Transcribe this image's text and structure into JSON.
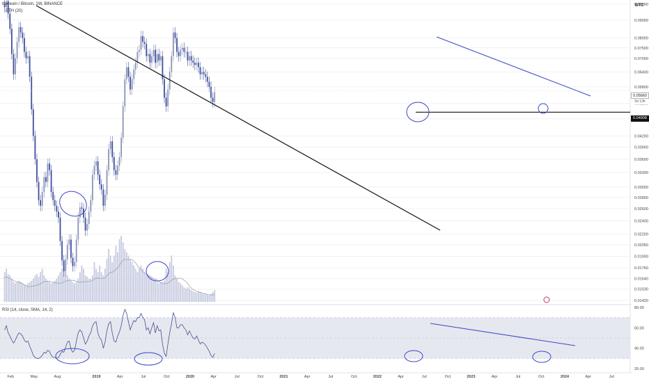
{
  "header": {
    "symbol": "thereum / Bitcoin, 1W, BINANCE",
    "ma_label": "ETH (20)",
    "currency": "BTC"
  },
  "rsi_header": "RSI (14, close, SMA, 14, 2)",
  "price_tags": {
    "current": "0.05660",
    "countdown": "5d 13h",
    "level": "0.04908"
  },
  "colors": {
    "up": "#8b93b8",
    "down": "#3f4f9e",
    "trend_blue": "#3a45c8",
    "trend_black": "#111111",
    "rsi_line": "#454f8a",
    "rsi_band": "#e6e8f0",
    "volume": "#c5cae0",
    "ma": "#9a9a9a"
  },
  "chart_data": [
    {
      "type": "line",
      "title": "",
      "xlabel": "",
      "ylabel": "",
      "x_ticks": [
        "Feb",
        "May",
        "Aug",
        "2019",
        "Apr",
        "Jul",
        "Oct",
        "2020",
        "Apr",
        "Jul",
        "Oct",
        "2021",
        "Apr",
        "Jul",
        "Oct",
        "2022",
        "Apr",
        "Jul",
        "Oct",
        "2023",
        "Apr",
        "Jul",
        "Oct",
        "2024",
        "Apr",
        "Jul"
      ],
      "y_ticks": [
        "0.10000",
        "0.09000",
        "0.08000",
        "0.07500",
        "0.07000",
        "0.06400",
        "0.05800",
        "0.05200",
        "0.04700",
        "0.04200",
        "0.03900",
        "0.03600",
        "0.03300",
        "0.03000",
        "0.02800",
        "0.02600",
        "0.02400",
        "0.02200",
        "0.02050",
        "0.01900",
        "0.01760",
        "0.01640",
        "0.01530",
        "0.01420"
      ],
      "ylim": [
        0.0142,
        0.1
      ],
      "log_scale": true,
      "series": [
        {
          "values": [
            0.098,
            0.102,
            0.094,
            0.085,
            0.072,
            0.063,
            0.07,
            0.078,
            0.086,
            0.083,
            0.08,
            0.073,
            0.07,
            0.071,
            0.062,
            0.05,
            0.042,
            0.036,
            0.031,
            0.0275,
            0.0265,
            0.029,
            0.032,
            0.031,
            0.035,
            0.0335,
            0.029,
            0.0275,
            0.0265,
            0.0255,
            0.0245,
            0.021,
            0.0185,
            0.0172,
            0.0186,
            0.0205,
            0.0212,
            0.0188,
            0.0178,
            0.0183,
            0.0212,
            0.0245,
            0.0262,
            0.026,
            0.0245,
            0.0225,
            0.0235,
            0.0255,
            0.0275,
            0.0325,
            0.0345,
            0.0355,
            0.0325,
            0.0305,
            0.0295,
            0.0265,
            0.0285,
            0.0335,
            0.0385,
            0.0405,
            0.0365,
            0.0335,
            0.0325,
            0.0345,
            0.0365,
            0.0415,
            0.051,
            0.061,
            0.066,
            0.062,
            0.057,
            0.061,
            0.065,
            0.068,
            0.073,
            0.074,
            0.081,
            0.078,
            0.077,
            0.071,
            0.072,
            0.068,
            0.071,
            0.074,
            0.068,
            0.072,
            0.069,
            0.071,
            0.061,
            0.054,
            0.051,
            0.057,
            0.064,
            0.071,
            0.083,
            0.08,
            0.073,
            0.071,
            0.074,
            0.075,
            0.073,
            0.073,
            0.069,
            0.071,
            0.069,
            0.068,
            0.067,
            0.068,
            0.066,
            0.063,
            0.064,
            0.063,
            0.062,
            0.06,
            0.058,
            0.054,
            0.0525,
            0.056
          ]
        }
      ],
      "annotations": {
        "horizontal_level": 0.04908,
        "descending_trendline": "from 2018-01 (~0.10) to 2021-10 (~0.023)",
        "blue_trendline": "from 2022-08 (~0.084) to 2024-04 (~0.059)"
      }
    },
    {
      "type": "bar",
      "title": "",
      "xlabel": "",
      "ylabel": "",
      "series": [
        {
          "values": [
            0.45,
            0.5,
            0.42,
            0.4,
            0.35,
            0.3,
            0.28,
            0.3,
            0.32,
            0.3,
            0.28,
            0.26,
            0.25,
            0.28,
            0.3,
            0.32,
            0.35,
            0.4,
            0.42,
            0.38,
            0.45,
            0.5,
            0.4,
            0.35,
            0.32,
            0.3,
            0.28,
            0.3,
            0.32,
            0.35,
            0.4,
            0.45,
            0.5,
            0.55,
            0.45,
            0.4,
            0.35,
            0.32,
            0.3,
            0.28,
            0.3,
            0.35,
            0.45,
            0.55,
            0.5,
            0.4,
            0.38,
            0.35,
            0.35,
            0.4,
            0.6,
            0.5,
            0.45,
            0.55,
            0.45,
            0.4,
            0.5,
            0.65,
            0.8,
            0.7,
            0.6,
            0.7,
            0.85,
            0.75,
            0.95,
            1.0,
            0.9,
            0.8,
            0.75,
            0.7,
            0.65,
            0.6,
            0.55,
            0.5,
            0.45,
            0.5,
            0.55,
            0.5,
            0.45,
            0.4,
            0.42,
            0.4,
            0.38,
            0.35,
            0.35,
            0.3,
            0.28,
            0.3,
            0.3,
            0.32,
            0.5,
            0.45,
            0.6,
            0.7,
            0.55,
            0.4,
            0.35,
            0.3,
            0.28,
            0.25,
            0.22,
            0.2,
            0.22,
            0.2,
            0.18,
            0.16,
            0.15,
            0.14,
            0.16,
            0.15,
            0.13,
            0.12,
            0.12,
            0.11,
            0.1,
            0.12,
            0.15,
            0.18
          ]
        }
      ]
    },
    {
      "type": "line",
      "title": "RSI (14, close, SMA, 14, 2)",
      "xlabel": "",
      "ylabel": "",
      "ylim": [
        20,
        80
      ],
      "y_ticks": [
        "80.00",
        "60.00",
        "40.00",
        "20.00"
      ],
      "band": [
        30,
        70
      ],
      "series": [
        {
          "values": [
            58,
            62,
            55,
            52,
            48,
            45,
            48,
            52,
            55,
            54,
            52,
            48,
            46,
            47,
            42,
            38,
            33,
            31,
            30,
            30,
            31,
            33,
            36,
            35,
            38,
            37,
            33,
            31,
            31,
            30,
            31,
            34,
            37,
            36,
            41,
            46,
            47,
            39,
            36,
            38,
            47,
            55,
            58,
            56,
            50,
            44,
            47,
            52,
            55,
            62,
            65,
            66,
            55,
            50,
            48,
            40,
            46,
            57,
            64,
            66,
            55,
            47,
            46,
            52,
            56,
            62,
            72,
            78,
            74,
            66,
            58,
            63,
            67,
            66,
            70,
            70,
            74,
            70,
            68,
            58,
            60,
            54,
            60,
            65,
            55,
            62,
            57,
            58,
            44,
            35,
            32,
            44,
            55,
            64,
            75,
            70,
            60,
            60,
            63,
            63,
            60,
            58,
            53,
            57,
            53,
            50,
            49,
            52,
            48,
            44,
            46,
            45,
            43,
            40,
            37,
            33,
            31,
            35
          ]
        }
      ]
    }
  ]
}
